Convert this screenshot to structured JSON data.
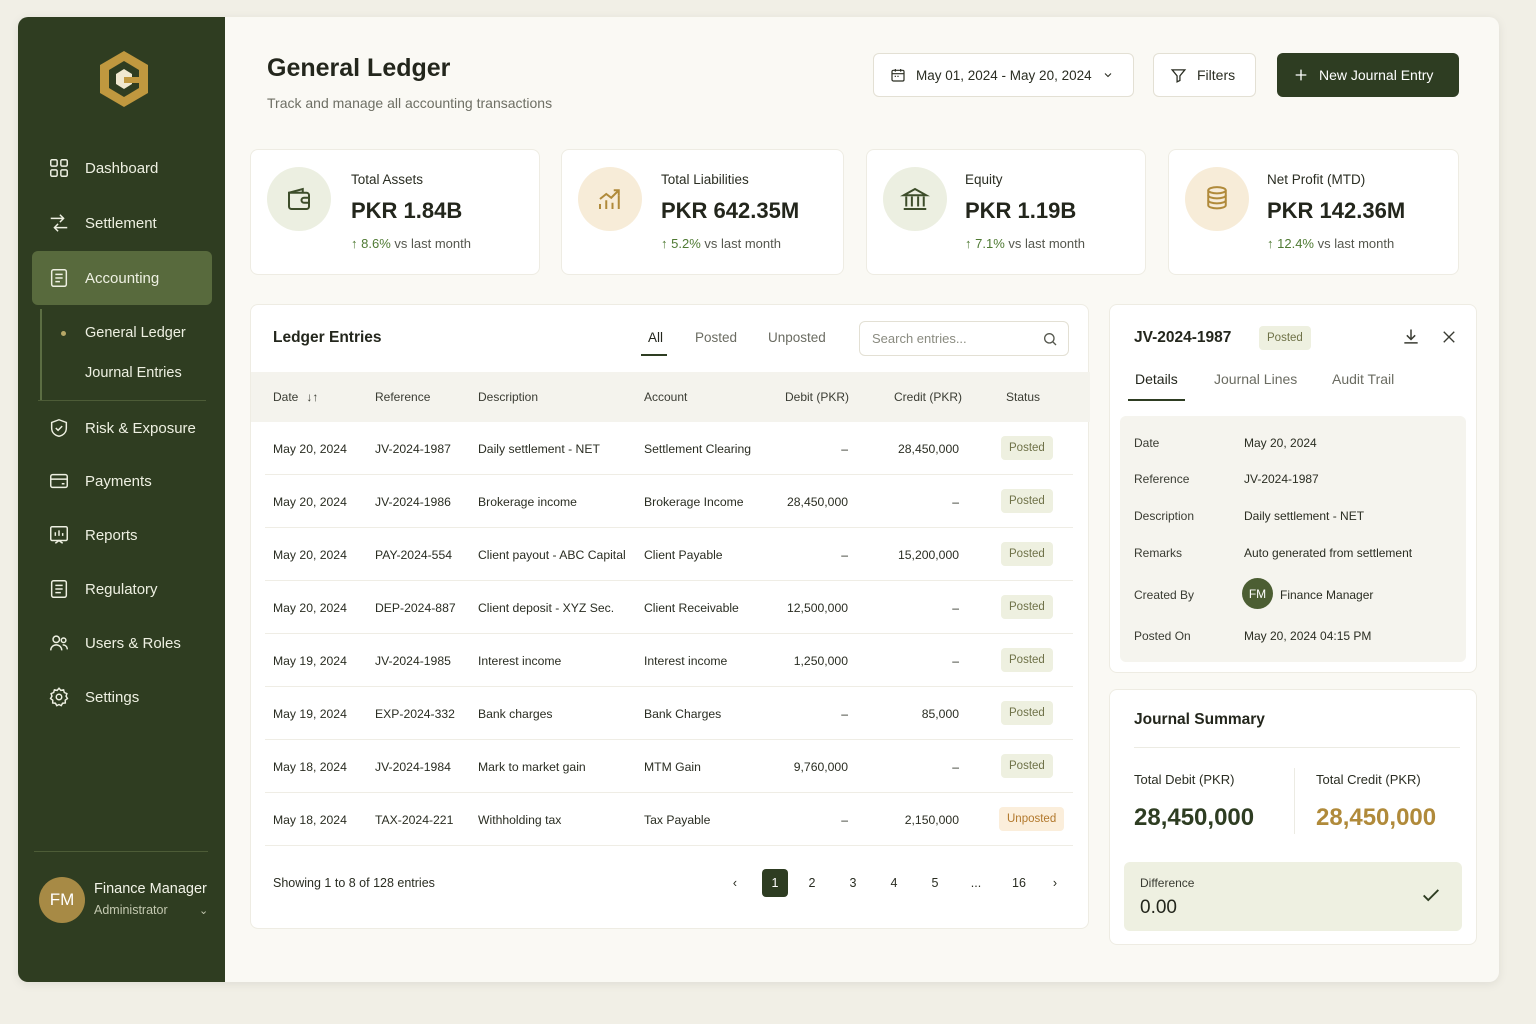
{
  "sidebar": {
    "items": [
      {
        "label": "Dashboard",
        "icon": "dashboard-icon"
      },
      {
        "label": "Settlement",
        "icon": "settlement-icon"
      },
      {
        "label": "Accounting",
        "icon": "accounting-icon"
      },
      {
        "label": "Risk & Exposure",
        "icon": "shield-icon"
      },
      {
        "label": "Payments",
        "icon": "card-icon"
      },
      {
        "label": "Reports",
        "icon": "reports-icon"
      },
      {
        "label": "Regulatory",
        "icon": "document-icon"
      },
      {
        "label": "Users & Roles",
        "icon": "users-icon"
      },
      {
        "label": "Settings",
        "icon": "gear-icon"
      }
    ],
    "sub_items": [
      {
        "label": "General Ledger"
      },
      {
        "label": "Journal Entries"
      }
    ],
    "user": {
      "initials": "FM",
      "name": "Finance Manager",
      "role": "Administrator"
    }
  },
  "header": {
    "title": "General Ledger",
    "subtitle": "Track and manage all accounting transactions",
    "date_range": "May 01, 2024 - May 20, 2024",
    "filters_label": "Filters",
    "new_entry_label": "New Journal Entry"
  },
  "stats": [
    {
      "label": "Total Assets",
      "value": "PKR 1.84B",
      "trend": "8.6%",
      "trend_suffix": "vs last month"
    },
    {
      "label": "Total Liabilities",
      "value": "PKR 642.35M",
      "trend": "5.2%",
      "trend_suffix": "vs last month"
    },
    {
      "label": "Equity",
      "value": "PKR 1.19B",
      "trend": "7.1%",
      "trend_suffix": "vs last month"
    },
    {
      "label": "Net Profit (MTD)",
      "value": "PKR 142.36M",
      "trend": "12.4%",
      "trend_suffix": "vs last month"
    }
  ],
  "ledger": {
    "title": "Ledger Entries",
    "tabs": [
      "All",
      "Posted",
      "Unposted"
    ],
    "active_tab": "All",
    "search_placeholder": "Search entries...",
    "columns": [
      "Date",
      "Reference",
      "Description",
      "Account",
      "Debit (PKR)",
      "Credit (PKR)",
      "Status"
    ],
    "rows": [
      {
        "date": "May 20, 2024",
        "ref": "JV-2024-1987",
        "desc": "Daily settlement - NET",
        "account": "Settlement Clearing",
        "debit": "–",
        "credit": "28,450,000",
        "status": "Posted"
      },
      {
        "date": "May 20, 2024",
        "ref": "JV-2024-1986",
        "desc": "Brokerage income",
        "account": "Brokerage Income",
        "debit": "28,450,000",
        "credit": "–",
        "status": "Posted"
      },
      {
        "date": "May 20, 2024",
        "ref": "PAY-2024-554",
        "desc": "Client payout - ABC Capital",
        "account": "Client Payable",
        "debit": "–",
        "credit": "15,200,000",
        "status": "Posted"
      },
      {
        "date": "May 20, 2024",
        "ref": "DEP-2024-887",
        "desc": "Client deposit - XYZ Sec.",
        "account": "Client Receivable",
        "debit": "12,500,000",
        "credit": "–",
        "status": "Posted"
      },
      {
        "date": "May 19, 2024",
        "ref": "JV-2024-1985",
        "desc": "Interest income",
        "account": "Interest income",
        "debit": "1,250,000",
        "credit": "–",
        "status": "Posted"
      },
      {
        "date": "May 19, 2024",
        "ref": "EXP-2024-332",
        "desc": "Bank charges",
        "account": "Bank Charges",
        "debit": "–",
        "credit": "85,000",
        "status": "Posted"
      },
      {
        "date": "May 18, 2024",
        "ref": "JV-2024-1984",
        "desc": "Mark to market gain",
        "account": "MTM Gain",
        "debit": "9,760,000",
        "credit": "–",
        "status": "Posted"
      },
      {
        "date": "May 18, 2024",
        "ref": "TAX-2024-221",
        "desc": "Withholding tax",
        "account": "Tax Payable",
        "debit": "–",
        "credit": "2,150,000",
        "status": "Unposted"
      }
    ],
    "showing": "Showing 1 to 8 of 128 entries",
    "pages": [
      "1",
      "2",
      "3",
      "4",
      "5",
      "...",
      "16"
    ],
    "current_page": "1"
  },
  "detail": {
    "title": "JV-2024-1987",
    "status": "Posted",
    "tabs": [
      "Details",
      "Journal Lines",
      "Audit Trail"
    ],
    "fields": {
      "date_label": "Date",
      "date": "May 20, 2024",
      "reference_label": "Reference",
      "reference": "JV-2024-1987",
      "description_label": "Description",
      "description": "Daily settlement - NET",
      "remarks_label": "Remarks",
      "remarks": "Auto generated from settlement",
      "created_by_label": "Created By",
      "created_by_initials": "FM",
      "created_by": "Finance Manager",
      "posted_on_label": "Posted On",
      "posted_on": "May 20, 2024 04:15 PM"
    }
  },
  "summary": {
    "title": "Journal Summary",
    "debit_label": "Total Debit (PKR)",
    "debit_value": "28,450,000",
    "credit_label": "Total Credit (PKR)",
    "credit_value": "28,450,000",
    "difference_label": "Difference",
    "difference_value": "0.00"
  },
  "colors": {
    "sidebar_bg": "#2f3d21",
    "primary": "#2e3d22",
    "accent_gold": "#b08a3a",
    "trend_up": "#4f7a33"
  }
}
